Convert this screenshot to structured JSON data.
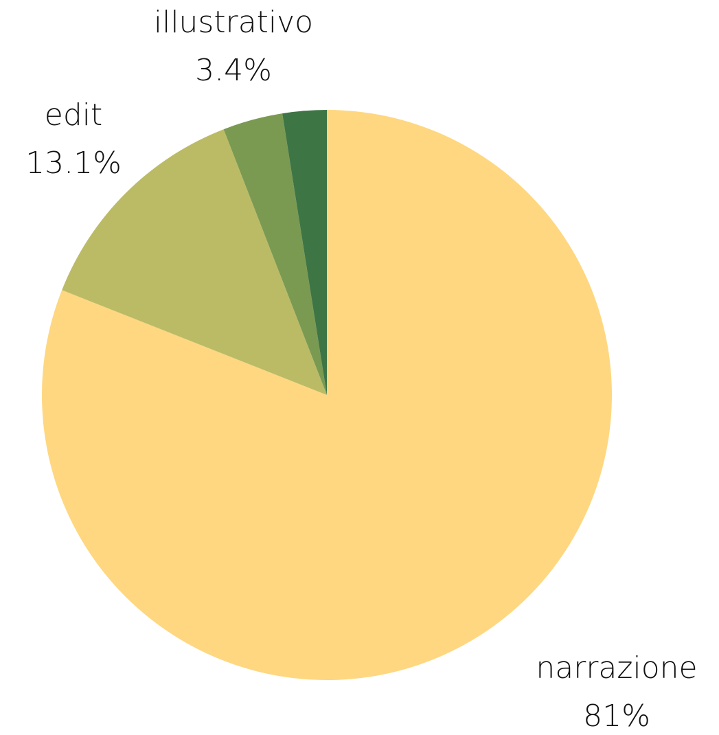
{
  "chart_data": {
    "type": "pie",
    "categories": [
      "narrazione",
      "edit",
      "illustrativo",
      null
    ],
    "values": [
      81,
      13.1,
      3.4,
      2.5
    ],
    "value_labels": [
      "81%",
      "13.1%",
      "3.4%",
      null
    ],
    "colors": [
      "#fed780",
      "#bbbb66",
      "#7a9a52",
      "#3e7545"
    ]
  }
}
